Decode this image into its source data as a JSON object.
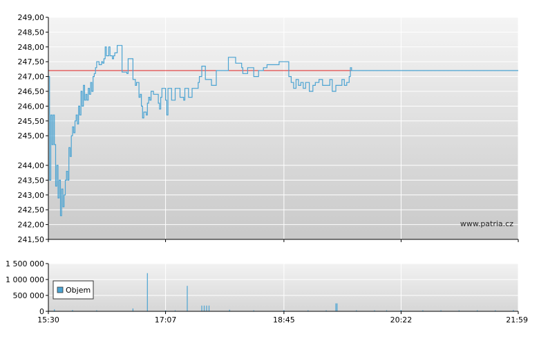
{
  "chart_data": [
    {
      "type": "line",
      "title": "",
      "xlabel": "",
      "ylabel": "",
      "ylim": [
        241.5,
        249.0
      ],
      "y_ticks": [
        "249,00",
        "248,50",
        "248,00",
        "247,50",
        "247,00",
        "246,50",
        "246,00",
        "245,50",
        "245,00",
        "244,00",
        "243,50",
        "243,00",
        "242,50",
        "242,00",
        "241,50"
      ],
      "y_tick_values": [
        249.0,
        248.5,
        248.0,
        247.5,
        247.0,
        246.5,
        246.0,
        245.5,
        245.0,
        244.0,
        243.5,
        243.0,
        242.5,
        242.0,
        241.5
      ],
      "x_ticks": [
        "15:30",
        "17:07",
        "18:45",
        "20:22",
        "21:59"
      ],
      "grid": true,
      "reference_line": {
        "value": 247.2,
        "color": "#e02020"
      },
      "watermark": "www.patria.cz",
      "series": [
        {
          "color": "#4aa3d2",
          "points": [
            [
              "15:30",
              247.0
            ],
            [
              "15:31",
              243.5
            ],
            [
              "15:32",
              245.7
            ],
            [
              "15:33",
              244.7
            ],
            [
              "15:34",
              245.7
            ],
            [
              "15:35",
              244.7
            ],
            [
              "15:36",
              243.3
            ],
            [
              "15:37",
              244.0
            ],
            [
              "15:38",
              242.9
            ],
            [
              "15:39",
              243.5
            ],
            [
              "15:40",
              242.3
            ],
            [
              "15:41",
              243.2
            ],
            [
              "15:42",
              242.6
            ],
            [
              "15:43",
              243.0
            ],
            [
              "15:44",
              243.5
            ],
            [
              "15:45",
              243.8
            ],
            [
              "15:46",
              243.5
            ],
            [
              "15:47",
              244.6
            ],
            [
              "15:48",
              244.3
            ],
            [
              "15:49",
              245.0
            ],
            [
              "15:50",
              245.3
            ],
            [
              "15:51",
              245.1
            ],
            [
              "15:52",
              245.5
            ],
            [
              "15:53",
              245.7
            ],
            [
              "15:54",
              245.4
            ],
            [
              "15:55",
              246.0
            ],
            [
              "15:56",
              245.7
            ],
            [
              "15:57",
              246.5
            ],
            [
              "15:58",
              246.0
            ],
            [
              "15:59",
              246.7
            ],
            [
              "16:00",
              246.2
            ],
            [
              "16:01",
              246.4
            ],
            [
              "16:02",
              246.2
            ],
            [
              "16:03",
              246.6
            ],
            [
              "16:04",
              246.4
            ],
            [
              "16:05",
              246.8
            ],
            [
              "16:06",
              246.5
            ],
            [
              "16:07",
              247.0
            ],
            [
              "16:08",
              247.1
            ],
            [
              "16:09",
              247.3
            ],
            [
              "16:10",
              247.5
            ],
            [
              "16:12",
              247.4
            ],
            [
              "16:14",
              247.5
            ],
            [
              "16:15",
              247.45
            ],
            [
              "16:16",
              247.6
            ],
            [
              "16:17",
              248.0
            ],
            [
              "16:18",
              247.7
            ],
            [
              "16:20",
              248.0
            ],
            [
              "16:21",
              247.7
            ],
            [
              "16:23",
              247.6
            ],
            [
              "16:24",
              247.7
            ],
            [
              "16:25",
              247.8
            ],
            [
              "16:27",
              248.05
            ],
            [
              "16:30",
              248.05
            ],
            [
              "16:31",
              247.15
            ],
            [
              "16:35",
              247.1
            ],
            [
              "16:36",
              247.6
            ],
            [
              "16:39",
              247.6
            ],
            [
              "16:40",
              246.9
            ],
            [
              "16:42",
              246.7
            ],
            [
              "16:43",
              246.8
            ],
            [
              "16:45",
              246.3
            ],
            [
              "16:46",
              246.4
            ],
            [
              "16:47",
              246.0
            ],
            [
              "16:48",
              245.6
            ],
            [
              "16:49",
              245.8
            ],
            [
              "16:51",
              245.7
            ],
            [
              "16:52",
              246.1
            ],
            [
              "16:53",
              246.3
            ],
            [
              "16:54",
              246.2
            ],
            [
              "16:55",
              246.5
            ],
            [
              "16:57",
              246.4
            ],
            [
              "16:58",
              246.4
            ],
            [
              "17:00",
              246.4
            ],
            [
              "17:01",
              246.1
            ],
            [
              "17:02",
              245.9
            ],
            [
              "17:03",
              246.3
            ],
            [
              "17:04",
              246.6
            ],
            [
              "17:05",
              246.6
            ],
            [
              "17:07",
              246.2
            ],
            [
              "17:08",
              245.7
            ],
            [
              "17:09",
              246.6
            ],
            [
              "17:11",
              246.6
            ],
            [
              "17:12",
              246.2
            ],
            [
              "17:14",
              246.2
            ],
            [
              "17:15",
              246.6
            ],
            [
              "17:18",
              246.6
            ],
            [
              "17:19",
              246.3
            ],
            [
              "17:22",
              246.2
            ],
            [
              "17:23",
              246.6
            ],
            [
              "17:25",
              246.6
            ],
            [
              "17:26",
              246.3
            ],
            [
              "17:28",
              246.3
            ],
            [
              "17:29",
              246.6
            ],
            [
              "17:33",
              246.6
            ],
            [
              "17:34",
              246.8
            ],
            [
              "17:35",
              247.0
            ],
            [
              "17:37",
              247.35
            ],
            [
              "17:38",
              247.35
            ],
            [
              "17:40",
              246.9
            ],
            [
              "17:45",
              246.7
            ],
            [
              "17:49",
              247.2
            ],
            [
              "17:58",
              247.2
            ],
            [
              "17:59",
              247.65
            ],
            [
              "18:05",
              247.45
            ],
            [
              "18:10",
              247.3
            ],
            [
              "18:11",
              247.1
            ],
            [
              "18:15",
              247.3
            ],
            [
              "18:19",
              247.3
            ],
            [
              "18:20",
              247.0
            ],
            [
              "18:24",
              247.2
            ],
            [
              "18:27",
              247.2
            ],
            [
              "18:28",
              247.3
            ],
            [
              "18:31",
              247.4
            ],
            [
              "18:40",
              247.4
            ],
            [
              "18:41",
              247.5
            ],
            [
              "18:48",
              247.5
            ],
            [
              "18:49",
              247.0
            ],
            [
              "18:51",
              246.8
            ],
            [
              "18:53",
              246.6
            ],
            [
              "18:55",
              246.9
            ],
            [
              "18:57",
              246.7
            ],
            [
              "18:59",
              246.8
            ],
            [
              "19:01",
              246.6
            ],
            [
              "19:03",
              246.8
            ],
            [
              "19:06",
              246.5
            ],
            [
              "19:09",
              246.7
            ],
            [
              "19:11",
              246.8
            ],
            [
              "19:14",
              246.9
            ],
            [
              "19:17",
              246.7
            ],
            [
              "19:20",
              246.7
            ],
            [
              "19:23",
              246.9
            ],
            [
              "19:25",
              246.5
            ],
            [
              "19:28",
              246.7
            ],
            [
              "19:31",
              246.7
            ],
            [
              "19:33",
              246.9
            ],
            [
              "19:35",
              246.7
            ],
            [
              "19:37",
              246.8
            ],
            [
              "19:39",
              247.0
            ],
            [
              "19:40",
              247.3
            ],
            [
              "19:41",
              247.2
            ]
          ]
        }
      ]
    },
    {
      "type": "bar",
      "title": "",
      "ylim": [
        0,
        1500000
      ],
      "y_ticks": [
        "1 500 000",
        "1 000 000",
        "500 000",
        "0"
      ],
      "y_tick_values": [
        1500000,
        1000000,
        500000,
        0
      ],
      "x_ticks": [
        "15:30",
        "17:07",
        "18:45",
        "20:22",
        "21:59"
      ],
      "legend": {
        "label": "Objem",
        "color": "#4aa3d2",
        "placement": "left"
      },
      "series": [
        {
          "name": "Objem",
          "color": "#4aa3d2",
          "bars": [
            [
              "15:35",
              60000
            ],
            [
              "15:50",
              40000
            ],
            [
              "16:10",
              30000
            ],
            [
              "16:40",
              90000
            ],
            [
              "16:52",
              1200000
            ],
            [
              "17:07",
              30000
            ],
            [
              "17:15",
              30000
            ],
            [
              "17:25",
              800000
            ],
            [
              "17:37",
              180000
            ],
            [
              "17:39",
              180000
            ],
            [
              "17:41",
              180000
            ],
            [
              "17:43",
              180000
            ],
            [
              "18:00",
              50000
            ],
            [
              "18:20",
              30000
            ],
            [
              "18:45",
              40000
            ],
            [
              "19:05",
              30000
            ],
            [
              "19:20",
              30000
            ],
            [
              "19:28",
              250000
            ],
            [
              "19:29",
              250000
            ],
            [
              "19:45",
              30000
            ],
            [
              "20:00",
              30000
            ],
            [
              "20:10",
              30000
            ],
            [
              "20:22",
              40000
            ],
            [
              "20:40",
              30000
            ],
            [
              "20:55",
              30000
            ],
            [
              "21:10",
              30000
            ],
            [
              "21:25",
              30000
            ],
            [
              "21:40",
              30000
            ],
            [
              "21:55",
              40000
            ]
          ]
        }
      ]
    }
  ]
}
